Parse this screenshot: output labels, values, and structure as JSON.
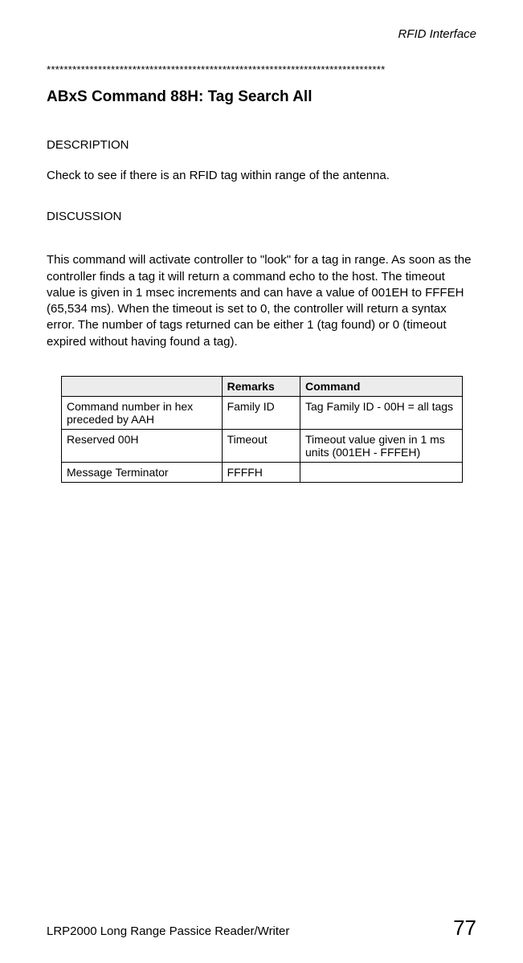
{
  "header": {
    "section": "RFID Interface"
  },
  "separator": "*******************************************************************************",
  "title": "ABxS Command 88H: Tag Search All",
  "description": {
    "heading": "DESCRIPTION",
    "text": "Check to see if there is an RFID tag within range of the antenna."
  },
  "discussion": {
    "heading": "DISCUSSION",
    "text": "This command will activate controller to \"look\" for a tag in range. As soon as the controller finds a tag it will return a command echo to the host.  The timeout value is given in 1 msec increments and can have a value of 001EH to FFFEH (65,534 ms). When the timeout is set to 0, the controller will return a syntax error. The number of tags returned can be either 1 (tag found) or 0 (timeout expired without having found a tag)."
  },
  "table": {
    "headers": {
      "col1": "",
      "col2": "Remarks",
      "col3": "Command"
    },
    "rows": [
      {
        "c1": "Command number in hex preceded by AAH",
        "c2": "Family ID",
        "c3": "Tag Family ID - 00H = all tags"
      },
      {
        "c1": "Reserved 00H",
        "c2": "Timeout",
        "c3": "Timeout value given in 1 ms units (001EH - FFFEH)"
      },
      {
        "c1": "Message Terminator",
        "c2": "FFFFH",
        "c3": ""
      }
    ]
  },
  "footer": {
    "left": "LRP2000 Long Range Passice Reader/Writer",
    "page": "77"
  }
}
